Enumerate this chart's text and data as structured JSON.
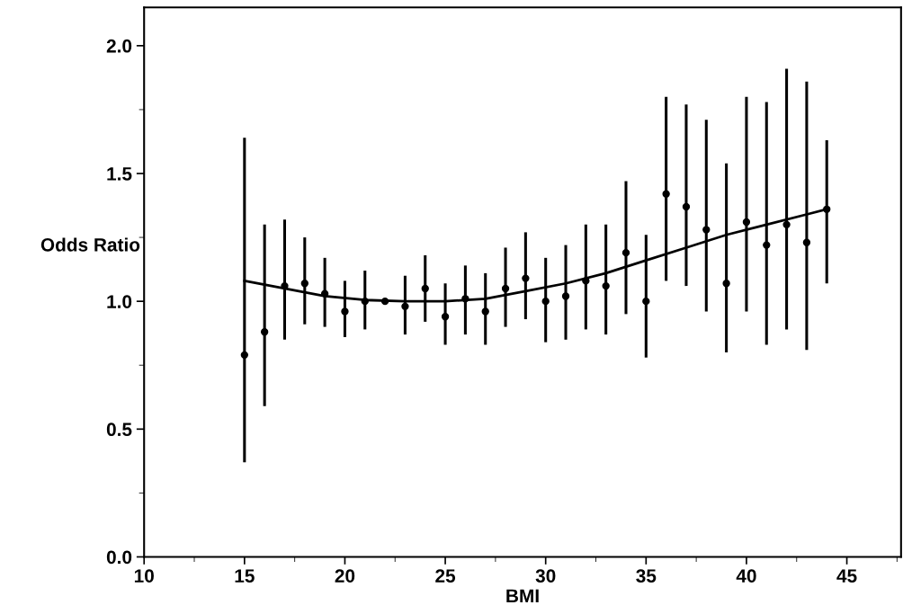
{
  "chart_data": {
    "type": "scatter",
    "xlabel": "BMI",
    "ylabel": "Odds Ratio",
    "xlim": [
      10,
      47.7
    ],
    "xticks": [
      10,
      15,
      20,
      25,
      30,
      35,
      40,
      45
    ],
    "ylim": [
      0,
      2.15
    ],
    "yticks": [
      {
        "value": 0,
        "label": "0.0"
      },
      {
        "value": 0.5,
        "label": "0.5"
      },
      {
        "value": 1,
        "label": "1.0"
      },
      {
        "value": 1.5,
        "label": "1.5"
      },
      {
        "value": 2,
        "label": "2.0"
      }
    ],
    "grid": false,
    "series": [
      {
        "color": "#000000",
        "marker": "circle",
        "x": [
          15,
          16,
          17,
          18,
          19,
          20,
          21,
          22,
          23,
          24,
          25,
          26,
          27,
          28,
          29,
          30,
          31,
          32,
          33,
          34,
          35,
          36,
          37,
          38,
          39,
          40,
          41,
          42,
          43,
          44
        ],
        "values": [
          0.79,
          0.88,
          1.06,
          1.07,
          1.03,
          0.96,
          1.0,
          1.0,
          0.98,
          1.05,
          0.94,
          1.01,
          0.96,
          1.05,
          1.09,
          1.0,
          1.02,
          1.08,
          1.06,
          1.19,
          1.0,
          1.42,
          1.37,
          1.28,
          1.07,
          1.31,
          1.22,
          1.3,
          1.23,
          1.36
        ],
        "errors": [
          [
            0.37,
            1.64
          ],
          [
            0.59,
            1.3
          ],
          [
            0.85,
            1.32
          ],
          [
            0.91,
            1.25
          ],
          [
            0.9,
            1.17
          ],
          [
            0.86,
            1.08
          ],
          [
            0.89,
            1.12
          ],
          null,
          [
            0.87,
            1.1
          ],
          [
            0.92,
            1.18
          ],
          [
            0.83,
            1.07
          ],
          [
            0.87,
            1.14
          ],
          [
            0.83,
            1.11
          ],
          [
            0.9,
            1.21
          ],
          [
            0.93,
            1.27
          ],
          [
            0.84,
            1.17
          ],
          [
            0.85,
            1.22
          ],
          [
            0.89,
            1.3
          ],
          [
            0.87,
            1.3
          ],
          [
            0.95,
            1.47
          ],
          [
            0.78,
            1.26
          ],
          [
            1.08,
            1.8
          ],
          [
            1.06,
            1.77
          ],
          [
            0.96,
            1.71
          ],
          [
            0.8,
            1.54
          ],
          [
            0.96,
            1.8
          ],
          [
            0.83,
            1.78
          ],
          [
            0.89,
            1.91
          ],
          [
            0.81,
            1.86
          ],
          [
            1.07,
            1.63
          ]
        ]
      },
      {
        "type": "line",
        "color": "#000000",
        "line_style": "solid",
        "x": [
          15,
          17,
          19,
          21,
          23,
          25,
          27,
          29,
          31,
          33,
          35,
          37,
          39,
          41,
          43,
          44
        ],
        "values": [
          1.08,
          1.05,
          1.02,
          1.005,
          1.0,
          1.0,
          1.01,
          1.04,
          1.07,
          1.11,
          1.16,
          1.21,
          1.26,
          1.3,
          1.34,
          1.36
        ]
      }
    ]
  }
}
